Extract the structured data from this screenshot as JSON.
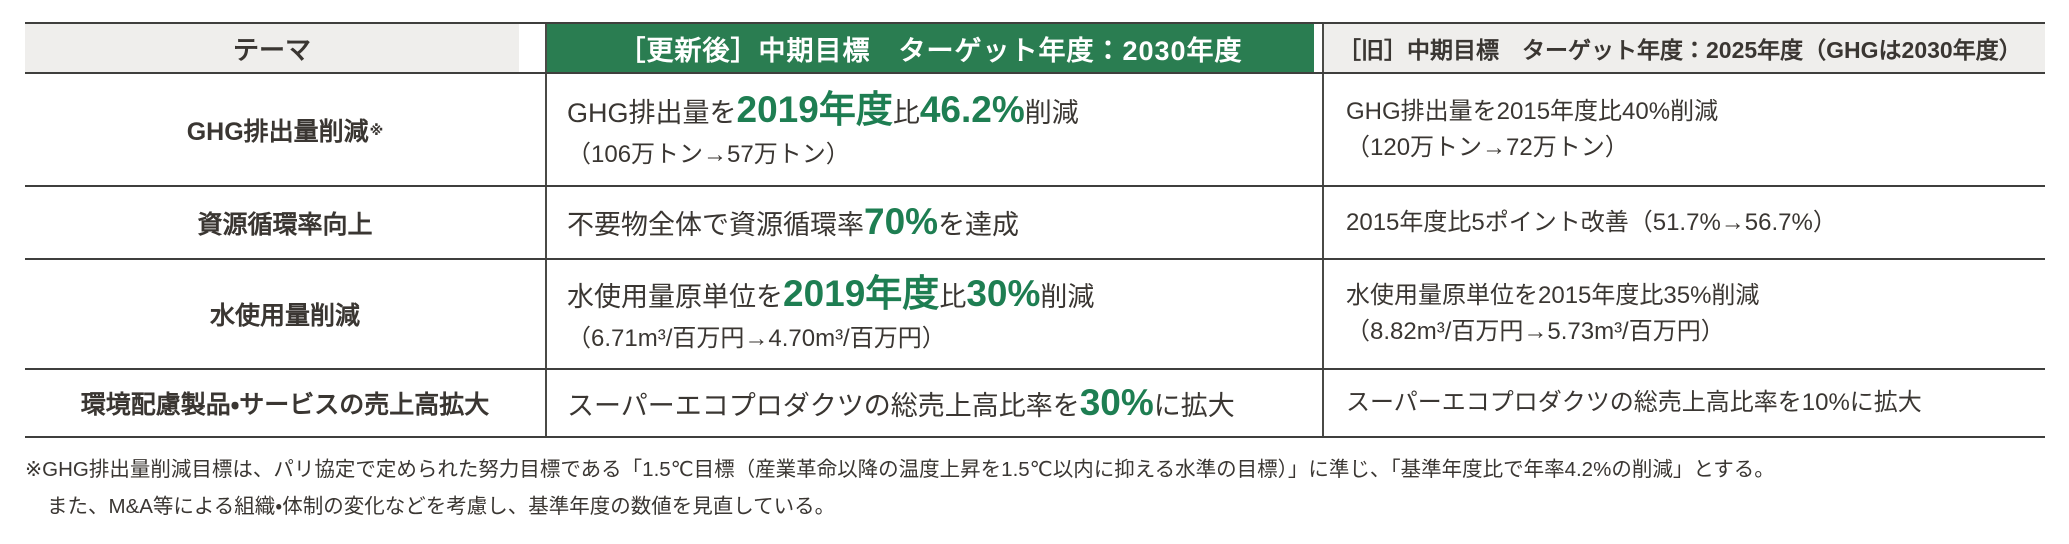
{
  "colors": {
    "header_green": "#2a7d51",
    "em_green": "#1e7e52",
    "header_gray": "#efeeec",
    "border_dark": "#3f3f3d",
    "text": "#3a3632"
  },
  "header": {
    "theme": "テーマ",
    "new_label": "［更新後］中期目標　ターゲット年度：2030年度",
    "old_label": "［旧］中期目標　ターゲット年度：2025年度（GHGは2030年度）"
  },
  "rows": [
    {
      "theme": "GHG排出量削減",
      "theme_mark": "※",
      "new": {
        "segments": [
          {
            "t": "GHG排出量を"
          },
          {
            "t": "2019年度",
            "em": true
          },
          {
            "t": "比"
          },
          {
            "t": "46.2%",
            "em": true
          },
          {
            "t": "削減"
          }
        ],
        "paren": "（106万トン→57万トン）"
      },
      "old": {
        "line1": "GHG排出量を2015年度比40%削減",
        "line2": "（120万トン→72万トン）"
      }
    },
    {
      "theme": "資源循環率向上",
      "new": {
        "segments": [
          {
            "t": "不要物全体で資源循環率"
          },
          {
            "t": "70%",
            "em": true
          },
          {
            "t": "を達成"
          }
        ]
      },
      "old": {
        "line1": "2015年度比5ポイント改善（51.7%→56.7%）"
      }
    },
    {
      "theme": "水使用量削減",
      "new": {
        "segments": [
          {
            "t": "水使用量原単位を"
          },
          {
            "t": "2019年度",
            "em": true
          },
          {
            "t": "比"
          },
          {
            "t": "30%",
            "em": true
          },
          {
            "t": "削減"
          }
        ],
        "paren": "（6.71m³/百万円→4.70m³/百万円）"
      },
      "old": {
        "line1": "水使用量原単位を2015年度比35%削減",
        "line2": "（8.82m³/百万円→5.73m³/百万円）"
      }
    },
    {
      "theme": "環境配慮製品・サービスの売上高拡大",
      "new": {
        "segments": [
          {
            "t": "スーパーエコプロダクツの総売上高比率を"
          },
          {
            "t": "30%",
            "em": true
          },
          {
            "t": "に拡大"
          }
        ]
      },
      "old": {
        "line1": "スーパーエコプロダクツの総売上高比率を10%に拡大"
      }
    }
  ],
  "footnotes": {
    "line1": "※GHG排出量削減目標は、パリ協定で定められた努力目標である「1.5℃目標（産業革命以降の温度上昇を1.5℃以内に抑える水準の目標）」に準じ、「基準年度比で年率4.2%の削減」とする。",
    "line2": "また、M&A等による組織・体制の変化などを考慮し、基準年度の数値を見直している。"
  }
}
